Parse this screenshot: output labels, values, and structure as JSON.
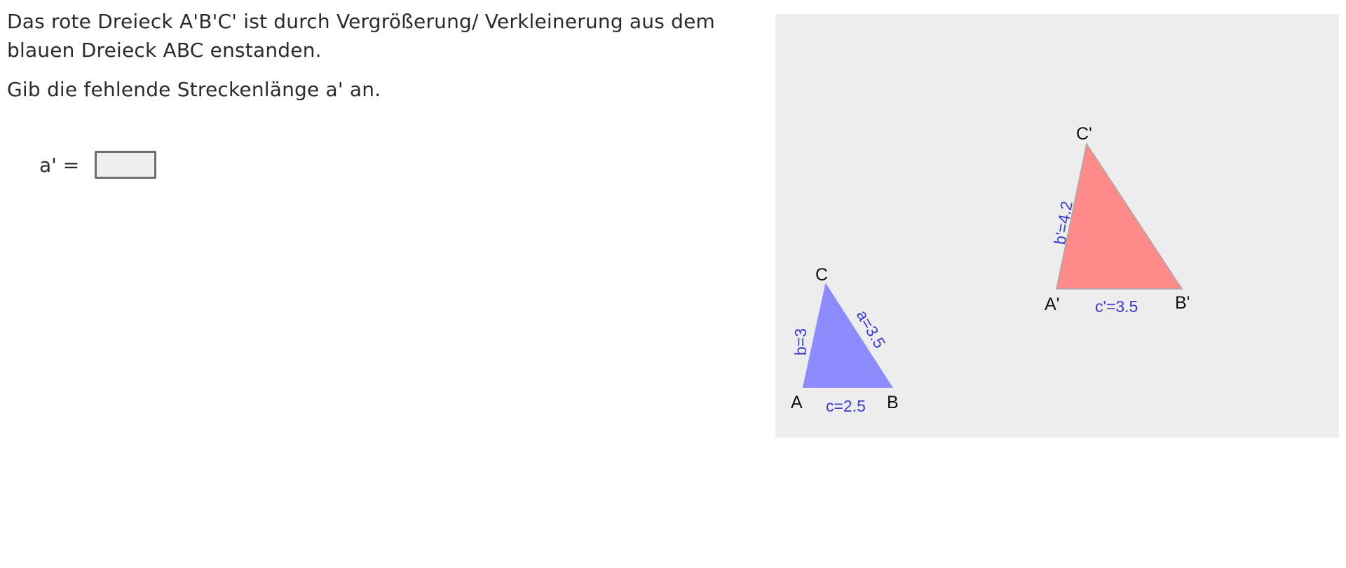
{
  "task": {
    "line1": "Das rote Dreieck A'B'C' ist durch Vergrößerung/ Verkleinerung aus dem blauen Dreieck ABC enstanden.",
    "line2": "Gib die fehlende Streckenlänge a' an."
  },
  "answer": {
    "label": "a' =",
    "value": ""
  },
  "figure": {
    "blue_triangle": {
      "color": "#8c8cff",
      "vertices": {
        "A": "A",
        "B": "B",
        "C": "C"
      },
      "sides": {
        "a": "a=3.5",
        "b": "b=3",
        "c": "c=2.5"
      }
    },
    "red_triangle": {
      "color": "#ff8a8a",
      "vertices": {
        "A": "A'",
        "B": "B'",
        "C": "C'"
      },
      "sides": {
        "b": "b'=4.2",
        "c": "c'=3.5"
      }
    },
    "label_color": "#3a3ad6",
    "background": "#ededed"
  }
}
